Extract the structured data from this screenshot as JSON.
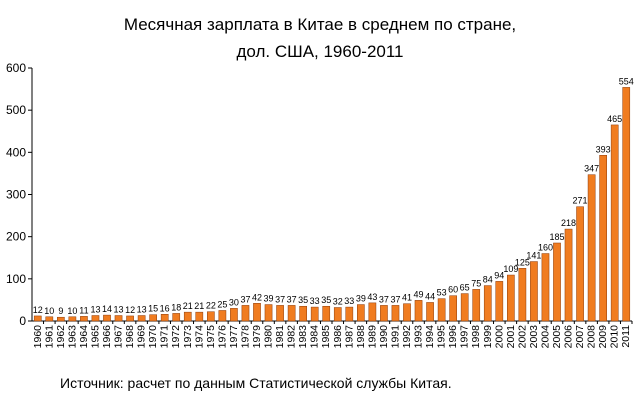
{
  "chart_data": {
    "type": "bar",
    "title": "Месячная зарплата в Китае в среднем по стране,",
    "subtitle": "дол. США, 1960-2011",
    "xlabel": "",
    "ylabel": "",
    "ylim": [
      0,
      600
    ],
    "yticks": [
      0,
      100,
      200,
      300,
      400,
      500,
      600
    ],
    "grid": false,
    "legend": "none",
    "bar_color": "#f07c20",
    "bar_edge_color": "#8b3a0a",
    "categories": [
      "1960",
      "1961",
      "1962",
      "1963",
      "1964",
      "1965",
      "1966",
      "1967",
      "1968",
      "1969",
      "1970",
      "1971",
      "1972",
      "1973",
      "1974",
      "1975",
      "1976",
      "1977",
      "1978",
      "1979",
      "1980",
      "1981",
      "1982",
      "1983",
      "1984",
      "1985",
      "1986",
      "1987",
      "1988",
      "1989",
      "1990",
      "1991",
      "1992",
      "1993",
      "1994",
      "1995",
      "1996",
      "1997",
      "1998",
      "1999",
      "2000",
      "2001",
      "2002",
      "2003",
      "2004",
      "2005",
      "2006",
      "2007",
      "2008",
      "2009",
      "2010",
      "2011"
    ],
    "values": [
      12,
      10,
      9,
      10,
      11,
      13,
      14,
      13,
      12,
      13,
      15,
      16,
      18,
      21,
      21,
      22,
      25,
      30,
      37,
      42,
      39,
      37,
      37,
      35,
      33,
      35,
      32,
      33,
      39,
      43,
      37,
      37,
      41,
      49,
      44,
      53,
      60,
      65,
      75,
      84,
      94,
      109,
      125,
      141,
      160,
      185,
      218,
      271,
      347,
      393,
      465,
      554
    ],
    "source": "Источник: расчет по данным Статистической службы Китая."
  }
}
